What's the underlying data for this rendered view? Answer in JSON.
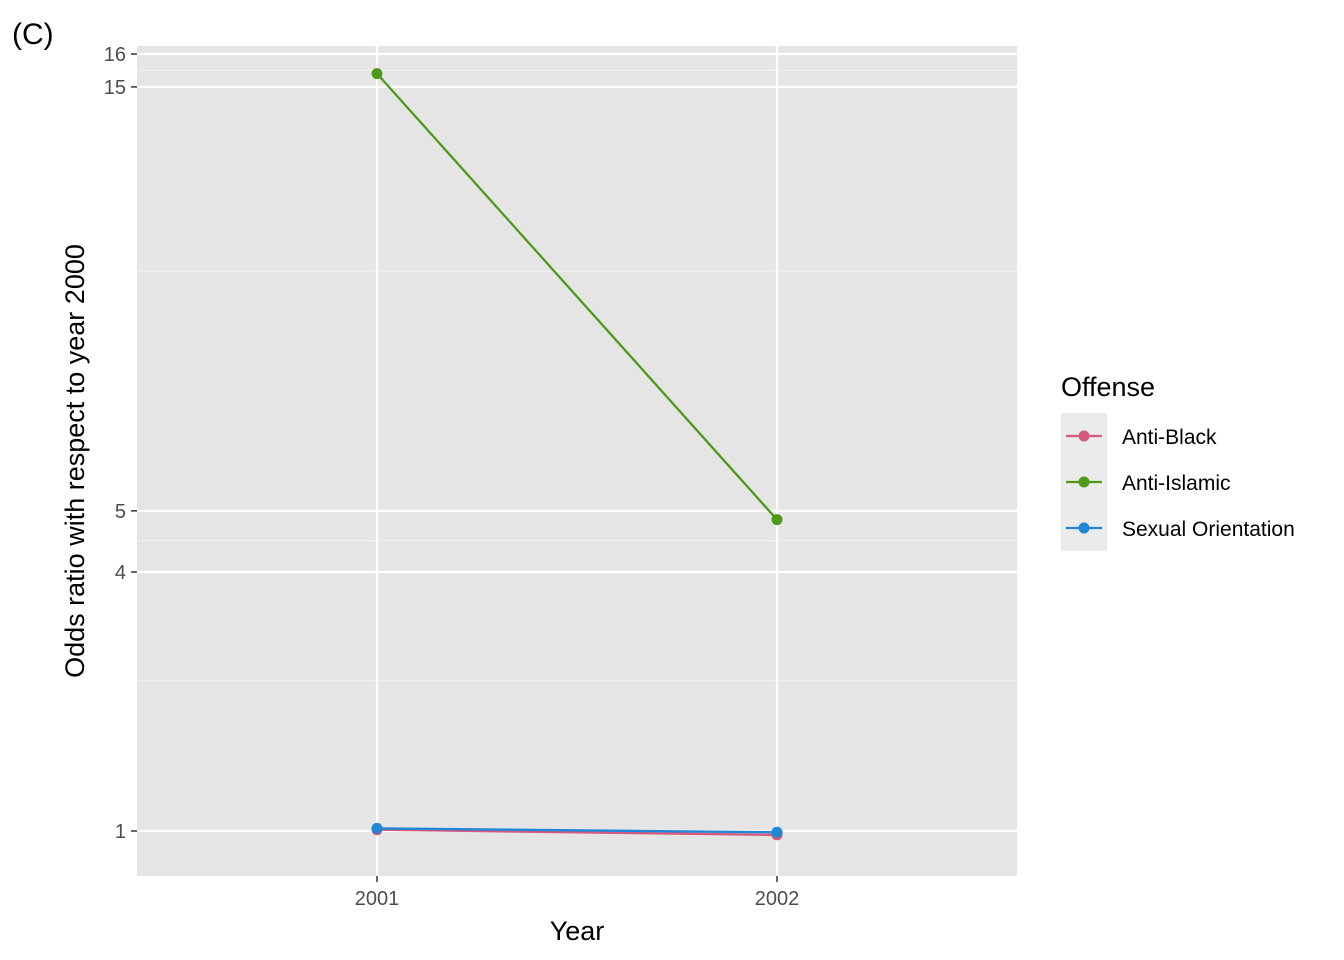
{
  "panel_label": "(C)",
  "chart_data": {
    "type": "line",
    "x": [
      "2001",
      "2002"
    ],
    "xlabel": "Year",
    "ylabel": "Odds ratio with respect to year 2000",
    "y_scale": "sqrt",
    "y_ticks": [
      1,
      4,
      5,
      15,
      16
    ],
    "y_minor_gridlines": [
      2.5,
      4.5,
      10,
      15.5
    ],
    "ylim": [
      0.8,
      16
    ],
    "grid": true,
    "legend_title": "Offense",
    "legend_position": "right",
    "series": [
      {
        "name": "Anti-Black",
        "color": "#d6587a",
        "values": [
          1.01,
          0.97
        ]
      },
      {
        "name": "Anti-Islamic",
        "color": "#4d9a1b",
        "values": [
          15.4,
          4.85
        ]
      },
      {
        "name": "Sexual Orientation",
        "color": "#1f87d6",
        "values": [
          1.02,
          0.99
        ]
      }
    ]
  }
}
